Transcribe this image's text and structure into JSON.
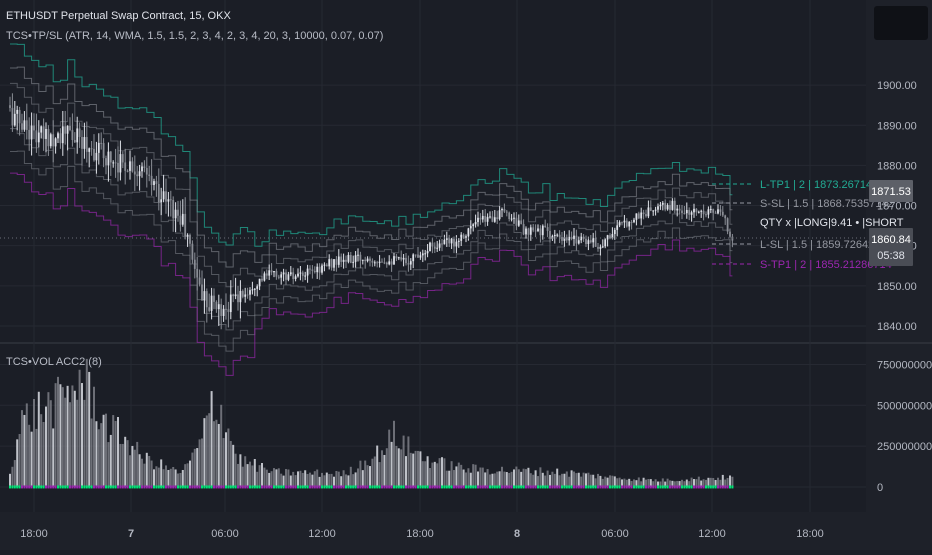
{
  "header": {
    "symbol_title": "ETHUSDT Perpetual Swap Contract, 15, OKX",
    "indicator_title": "TCS•TP/SL (ATR, 14, WMA, 1.5, 1.5, 2, 3, 4, 2, 3, 4, 20, 3, 10000, 0.07, 0.07)"
  },
  "volume_pane": {
    "title": "TCS•VOL ACC2 (8)",
    "y_ticks": [
      "750000000",
      "500000000",
      "250000000",
      "0"
    ]
  },
  "price_axis": {
    "ticks": [
      "1900.00",
      "1890.00",
      "1880.00",
      "1870.00",
      "1860.00",
      "1850.00",
      "1840.00"
    ]
  },
  "time_axis": {
    "ticks": [
      "18:00",
      "7",
      "06:00",
      "12:00",
      "18:00",
      "8",
      "06:00",
      "12:00",
      "18:00"
    ]
  },
  "level_labels": [
    {
      "text": "L-TP1 | 2 | 1873.267142857",
      "color": "#22ab94"
    },
    {
      "text": "S-SL | 1.5 | 1868.75357142",
      "color": "#9598a1"
    },
    {
      "text": "QTY x |LONG|9.41 • |SHORT",
      "color": "#e0e3ea"
    },
    {
      "text": "L-SL | 1.5 | 1859.72642857",
      "color": "#9598a1"
    },
    {
      "text": "S-TP1 | 2 | 1855.21286714",
      "color": "#9c27b0"
    }
  ],
  "price_tags": {
    "upper": "1871.53",
    "current": "1860.84",
    "countdown": "05:38"
  },
  "colors": {
    "background": "#1b1e26",
    "long_color": "#22ab94",
    "short_color": "#9c27b0",
    "candle_up": "#e0e3ea",
    "candle_down": "#8a8d95"
  },
  "chart_data": {
    "type": "candlestick",
    "symbol": "ETHUSDT",
    "interval": "15",
    "exchange": "OKX",
    "price_ylim": [
      1837,
      1910
    ],
    "volume_ylim": [
      -80000000,
      900000000
    ],
    "current_price": 1860.84,
    "levels": {
      "L-TP1": 1873.267142857,
      "S-SL": 1868.75357142,
      "L-SL": 1859.72642857,
      "S-TP1": 1855.21286714
    },
    "close_path": [
      [
        0,
        1893
      ],
      [
        12,
        1887
      ],
      [
        24,
        1888
      ],
      [
        35,
        1884
      ],
      [
        45,
        1881
      ],
      [
        52,
        1880
      ],
      [
        60,
        1875
      ],
      [
        72,
        1866
      ],
      [
        80,
        1848
      ],
      [
        88,
        1844
      ],
      [
        96,
        1848
      ],
      [
        108,
        1853
      ],
      [
        120,
        1852
      ],
      [
        135,
        1856
      ],
      [
        150,
        1857
      ],
      [
        165,
        1856
      ],
      [
        175,
        1860
      ],
      [
        185,
        1861
      ],
      [
        195,
        1866
      ],
      [
        205,
        1868
      ],
      [
        210,
        1867
      ],
      [
        215,
        1863
      ],
      [
        222,
        1864
      ],
      [
        230,
        1861
      ],
      [
        238,
        1862
      ],
      [
        246,
        1860
      ],
      [
        252,
        1864
      ],
      [
        260,
        1867
      ],
      [
        268,
        1869
      ],
      [
        276,
        1870
      ],
      [
        282,
        1868
      ],
      [
        290,
        1869
      ],
      [
        296,
        1868
      ],
      [
        301,
        1862
      ]
    ],
    "volume_path": [
      [
        0,
        110
      ],
      [
        5,
        400
      ],
      [
        12,
        470
      ],
      [
        18,
        500
      ],
      [
        24,
        560
      ],
      [
        28,
        650
      ],
      [
        32,
        620
      ],
      [
        40,
        380
      ],
      [
        48,
        300
      ],
      [
        55,
        180
      ],
      [
        60,
        150
      ],
      [
        68,
        100
      ],
      [
        72,
        90
      ],
      [
        80,
        280
      ],
      [
        84,
        520
      ],
      [
        88,
        460
      ],
      [
        95,
        170
      ],
      [
        110,
        90
      ],
      [
        140,
        80
      ],
      [
        155,
        220
      ],
      [
        160,
        320
      ],
      [
        165,
        250
      ],
      [
        175,
        160
      ],
      [
        190,
        110
      ],
      [
        210,
        100
      ],
      [
        230,
        90
      ],
      [
        250,
        60
      ],
      [
        270,
        40
      ],
      [
        301,
        60
      ]
    ]
  }
}
